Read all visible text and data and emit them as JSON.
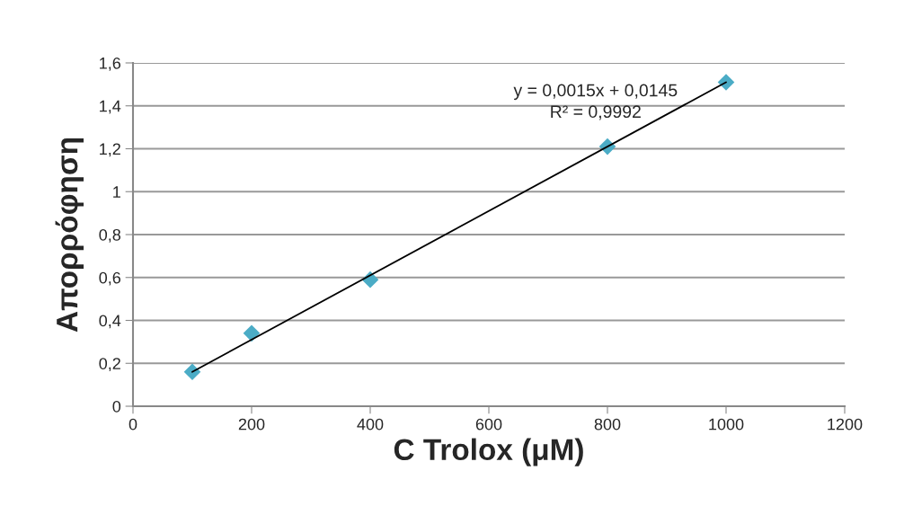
{
  "chart_data": {
    "type": "scatter",
    "xlabel": "C Trolox (μM)",
    "ylabel": "Απορρόφηση",
    "series": [
      {
        "color": "#4bacc6",
        "marker": "diamond",
        "x": [
          100,
          200,
          400,
          800,
          1000
        ],
        "values": [
          0.16,
          0.34,
          0.59,
          1.21,
          1.51
        ]
      },
      {
        "type": "line",
        "color": "#000000",
        "marker": "none",
        "line_style": "solid",
        "x": [
          100,
          1000
        ],
        "values": [
          0.16,
          1.51
        ]
      }
    ],
    "annotations": [
      "y = 0,0015x + 0,0145\nR² = 0,9992"
    ],
    "xlim": [
      0,
      1200
    ],
    "xticks": [
      0,
      200,
      400,
      600,
      800,
      1000,
      1200
    ],
    "ylim": [
      0,
      1.6
    ],
    "yticks": [
      0,
      {
        "value": 0.2,
        "label": "0,2"
      },
      {
        "value": 0.4,
        "label": "0,4"
      },
      {
        "value": 0.6,
        "label": "0,6"
      },
      {
        "value": 0.8,
        "label": "0,8"
      },
      1,
      {
        "value": 1.2,
        "label": "1,2"
      },
      {
        "value": 1.4,
        "label": "1,4"
      },
      {
        "value": 1.6,
        "label": "1,6"
      }
    ],
    "grid": "y",
    "legend": false
  }
}
